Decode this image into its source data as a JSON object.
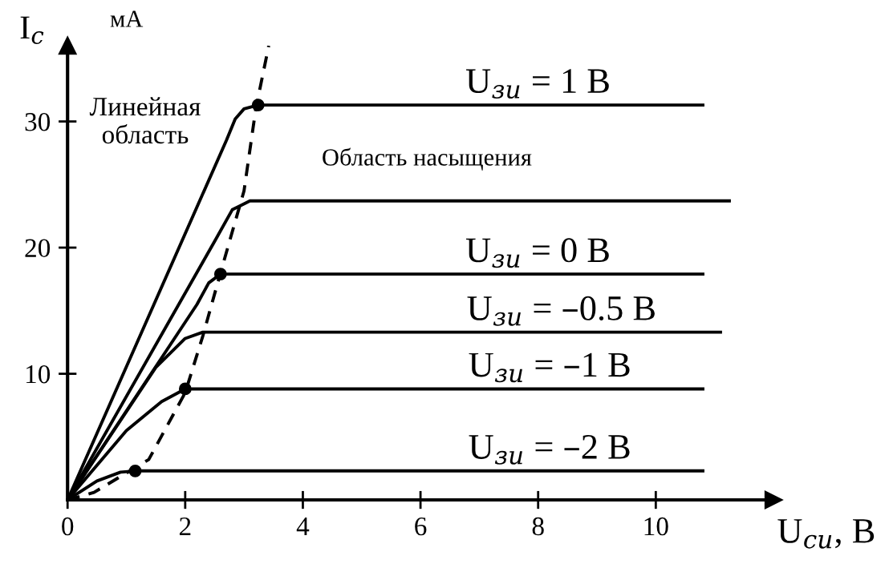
{
  "chart_data": {
    "type": "line",
    "xlabel": "U$_{си}$, В",
    "ylabel": "I$_{c}$",
    "xlim": [
      0,
      12
    ],
    "ylim": [
      0,
      36
    ],
    "xticks": [
      0,
      2,
      4,
      6,
      8,
      10
    ],
    "yticks": [
      10,
      20,
      30
    ],
    "grid": false,
    "legend": false,
    "series": [
      {
        "color": "#000000",
        "x": [
          0,
          2.7,
          2.85,
          3.0,
          3.24,
          10.8
        ],
        "values": [
          0,
          28.5,
          30.2,
          31.0,
          31.3,
          31.3
        ]
      },
      {
        "color": "#000000",
        "x": [
          0,
          2.5,
          2.8,
          3.1,
          11.25
        ],
        "values": [
          0,
          20.5,
          23.0,
          23.7,
          23.7
        ]
      },
      {
        "color": "#000000",
        "x": [
          0,
          2.2,
          2.4,
          2.6,
          10.8
        ],
        "values": [
          0,
          15.5,
          17.2,
          17.9,
          17.9
        ]
      },
      {
        "color": "#000000",
        "x": [
          0,
          1.5,
          2.0,
          2.3,
          11.1
        ],
        "values": [
          0,
          10.5,
          12.8,
          13.3,
          13.3
        ]
      },
      {
        "color": "#000000",
        "x": [
          0,
          1.0,
          1.6,
          2.0,
          10.8
        ],
        "values": [
          0,
          5.5,
          7.8,
          8.8,
          8.8
        ]
      },
      {
        "color": "#000000",
        "x": [
          0,
          0.5,
          0.9,
          1.15,
          10.8
        ],
        "values": [
          0,
          1.5,
          2.2,
          2.3,
          2.3
        ]
      },
      {
        "color": "#000000",
        "line_style": "dashed",
        "x": [
          0,
          0.45,
          1.38,
          2.0,
          2.3,
          2.6,
          3.0,
          3.2,
          3.42
        ],
        "values": [
          0,
          0.6,
          3.2,
          8.5,
          13.0,
          18.0,
          24.5,
          31.0,
          36.0
        ]
      },
      {
        "type": "scatter",
        "marker": "circle",
        "color": "#000000",
        "x": [
          3.24,
          2.6,
          2.0,
          1.15
        ],
        "values": [
          31.3,
          17.9,
          8.8,
          2.3
        ]
      }
    ],
    "annotations": [
      "мА",
      "Линейная\nобласть",
      "Область насыщения",
      {
        "text": "U$_{зи}$ = 1 В",
        "x": 8.0,
        "y": 31.3
      },
      {
        "text": "U$_{зи}$ = 0 В",
        "x": 8.0,
        "y": 17.9
      },
      {
        "text": "U$_{зи}$ = –0.5 В",
        "x": 8.4,
        "y": 13.3
      },
      {
        "text": "U$_{зи}$ = –1 В",
        "x": 8.2,
        "y": 8.8
      },
      {
        "text": "U$_{зи}$ = –2 В",
        "x": 8.2,
        "y": 2.3
      }
    ]
  }
}
